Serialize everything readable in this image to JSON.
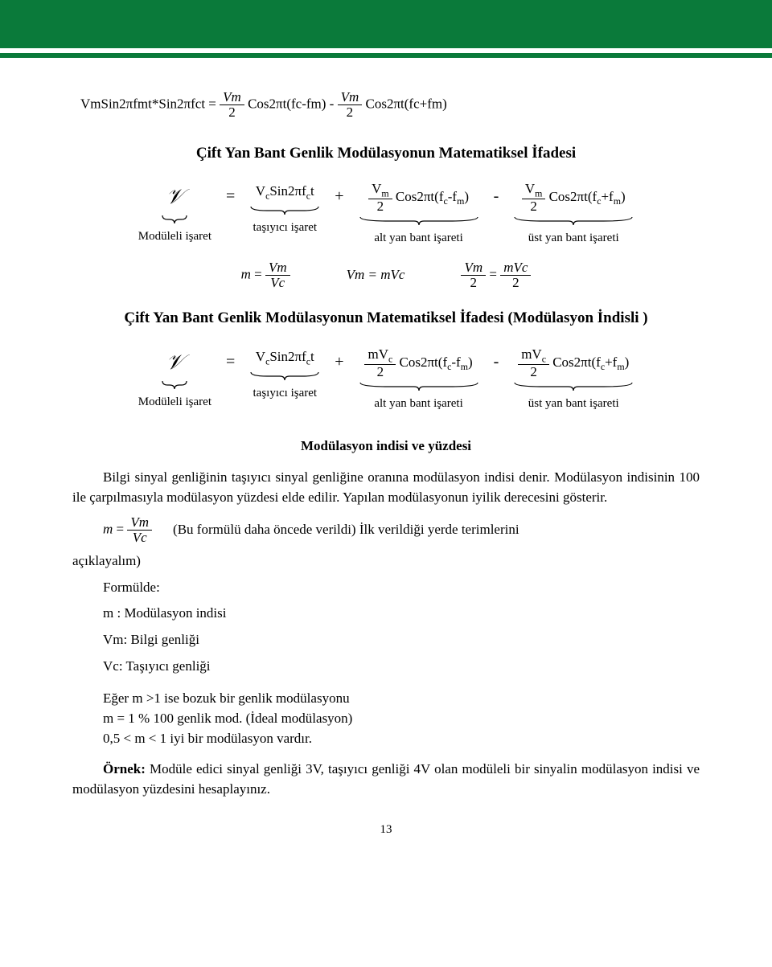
{
  "header": {
    "band1_color": "#0a7a3a",
    "band2_color": "#0a7a3a"
  },
  "eq1": {
    "lhs": "VmSin2πfmt*Sin2πfct =",
    "t1_num": "Vm",
    "t1_den": "2",
    "t1_tail": " Cos2πt(fc-fm) - ",
    "t2_num": "Vm",
    "t2_den": "2",
    "t2_tail": " Cos2πt(fc+fm)"
  },
  "section1": {
    "title": "Çift Yan Bant Genlik Modülasyonun Matematiksel İfadesi",
    "terms": [
      {
        "sym": "𝒱",
        "label": "Modüleli işaret"
      },
      {
        "op": "="
      },
      {
        "text_a": "V",
        "text_b": "c",
        "text_c": "Sin2πf",
        "text_d": "c",
        "text_e": "t",
        "label": "taşıyıcı işaret"
      },
      {
        "op": "+"
      },
      {
        "num_a": "V",
        "num_b": "m",
        "den": "2",
        "tail_a": " Cos2πt(f",
        "tail_b": "c",
        "tail_c": "-f",
        "tail_d": "m",
        "tail_e": ")",
        "label": "alt yan bant işareti"
      },
      {
        "op": "-"
      },
      {
        "num_a": "V",
        "num_b": "m",
        "den": "2",
        "tail_a": " Cos2πt(f",
        "tail_b": "c",
        "tail_c": "+f",
        "tail_d": "m",
        "tail_e": ")",
        "label": "üst yan bant işareti"
      }
    ]
  },
  "eq2": {
    "a_lhs": "m",
    "a_eq": " = ",
    "a_num": "Vm",
    "a_den": "Vc",
    "b": "Vm = mVc",
    "c_num1": "Vm",
    "c_den1": "2",
    "c_eq": " = ",
    "c_num2": "mVc",
    "c_den2": "2"
  },
  "section2": {
    "title": "Çift Yan Bant Genlik Modülasyonun Matematiksel İfadesi (Modülasyon İndisli )",
    "terms": [
      {
        "sym": "𝒱",
        "label": "Modüleli işaret"
      },
      {
        "op": "="
      },
      {
        "text_a": "V",
        "text_b": "c",
        "text_c": "Sin2πf",
        "text_d": "c",
        "text_e": "t",
        "label": "taşıyıcı işaret"
      },
      {
        "op": "+"
      },
      {
        "num_a": "mV",
        "num_b": "c",
        "den": "2",
        "tail_a": " Cos2πt(f",
        "tail_b": "c",
        "tail_c": "-f",
        "tail_d": "m",
        "tail_e": ")",
        "label": "alt yan bant işareti"
      },
      {
        "op": "-"
      },
      {
        "num_a": "mV",
        "num_b": "c",
        "den": "2",
        "tail_a": " Cos2πt(f",
        "tail_b": "c",
        "tail_c": "+f",
        "tail_d": "m",
        "tail_e": ")",
        "label": "üst yan bant işareti"
      }
    ]
  },
  "body": {
    "heading": "Modülasyon indisi ve yüzdesi",
    "p1": "Bilgi sinyal genliğinin taşıyıcı sinyal genliğine oranına modülasyon indisi denir. Modülasyon indisinin 100 ile çarpılmasıyla modülasyon yüzdesi elde edilir. Yapılan modülasyonun iyilik derecesini gösterir.",
    "f_m": "m",
    "f_eq": " = ",
    "f_num": "Vm",
    "f_den": "Vc",
    "f_note": "(Bu formülü daha öncede verildi) İlk verildiği yerde terimlerini",
    "trail": "açıklayalım)",
    "d0": "Formülde:",
    "d1": "m : Modülasyon indisi",
    "d2": "Vm: Bilgi genliği",
    "d3": "Vc: Taşıyıcı genliği",
    "r1": "Eğer m >1 ise bozuk bir genlik modülasyonu",
    "r2": "m = 1 % 100 genlik mod. (İdeal modülasyon)",
    "r3": "0,5 < m < 1 iyi bir modülasyon vardır.",
    "ex_label": "Örnek: ",
    "ex_text": "Modüle edici sinyal genliği 3V, taşıyıcı genliği 4V olan modüleli bir sinyalin modülasyon indisi ve modülasyon yüzdesini hesaplayınız."
  },
  "footer": {
    "page": "13"
  }
}
